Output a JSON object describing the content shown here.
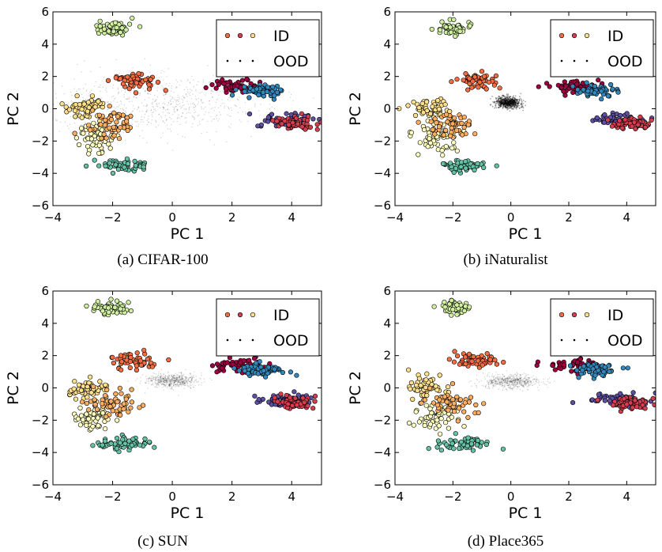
{
  "figure": {
    "captions": [
      "(a) CIFAR-100",
      "(b) iNaturalist",
      "(c) SUN",
      "(d) Place365"
    ]
  },
  "cluster_colors": [
    "#fee08b",
    "#ffffbf",
    "#fdae61",
    "#66c2a5",
    "#f46d43",
    "#d0f0a0",
    "#9e0142",
    "#3288bd",
    "#5e4fa2",
    "#d53e4f"
  ],
  "chart_data": [
    {
      "type": "scatter",
      "title": "",
      "caption": "(a) CIFAR-100",
      "xlabel": "PC 1",
      "ylabel": "PC 2",
      "xlim": [
        -4,
        5
      ],
      "ylim": [
        -6,
        6
      ],
      "xticks": [
        -4,
        -2,
        0,
        2,
        4
      ],
      "yticks": [
        -6,
        -4,
        -2,
        0,
        2,
        4,
        6
      ],
      "legend": {
        "entries": [
          "ID",
          "OOD"
        ],
        "placement": "top-right"
      },
      "ood": {
        "center": [
          -0.3,
          0.4
        ],
        "spread": [
          1.1,
          0.55
        ],
        "density": "diffuse"
      },
      "series": [
        {
          "name": "ID",
          "clusters": [
            {
              "center": [
                -2.9,
                0.0
              ],
              "spread": [
                0.35,
                0.35
              ],
              "color": "#fee08b"
            },
            {
              "center": [
                -2.6,
                -1.8
              ],
              "spread": [
                0.35,
                0.4
              ],
              "color": "#ffffbf"
            },
            {
              "center": [
                -2.0,
                -1.0
              ],
              "spread": [
                0.4,
                0.4
              ],
              "color": "#fdae61"
            },
            {
              "center": [
                -1.6,
                -3.5
              ],
              "spread": [
                0.45,
                0.2
              ],
              "color": "#66c2a5"
            },
            {
              "center": [
                -1.2,
                1.7
              ],
              "spread": [
                0.4,
                0.25
              ],
              "color": "#f46d43"
            },
            {
              "center": [
                -2.0,
                5.0
              ],
              "spread": [
                0.3,
                0.2
              ],
              "color": "#d0f0a0"
            },
            {
              "center": [
                2.2,
                1.4
              ],
              "spread": [
                0.45,
                0.2
              ],
              "color": "#9e0142"
            },
            {
              "center": [
                3.0,
                1.1
              ],
              "spread": [
                0.4,
                0.2
              ],
              "color": "#3288bd"
            },
            {
              "center": [
                3.8,
                -0.7
              ],
              "spread": [
                0.45,
                0.2
              ],
              "color": "#5e4fa2"
            },
            {
              "center": [
                4.1,
                -0.9
              ],
              "spread": [
                0.35,
                0.2
              ],
              "color": "#d53e4f"
            }
          ]
        },
        {
          "name": "OOD"
        }
      ]
    },
    {
      "type": "scatter",
      "title": "",
      "caption": "(b) iNaturalist",
      "xlabel": "PC 1",
      "ylabel": "PC 2",
      "xlim": [
        -4,
        5
      ],
      "ylim": [
        -6,
        6
      ],
      "xticks": [
        -4,
        -2,
        0,
        2,
        4
      ],
      "yticks": [
        -6,
        -4,
        -2,
        0,
        2,
        4,
        6
      ],
      "legend": {
        "entries": [
          "ID",
          "OOD"
        ],
        "placement": "top-right"
      },
      "ood": {
        "center": [
          -0.1,
          0.4
        ],
        "spread": [
          0.22,
          0.18
        ],
        "density": "dense"
      },
      "series": [
        {
          "name": "ID",
          "clusters": [
            {
              "center": [
                -2.9,
                0.0
              ],
              "spread": [
                0.35,
                0.35
              ],
              "color": "#fee08b"
            },
            {
              "center": [
                -2.6,
                -1.8
              ],
              "spread": [
                0.35,
                0.4
              ],
              "color": "#ffffbf"
            },
            {
              "center": [
                -2.0,
                -1.0
              ],
              "spread": [
                0.4,
                0.4
              ],
              "color": "#fdae61"
            },
            {
              "center": [
                -1.6,
                -3.5
              ],
              "spread": [
                0.45,
                0.2
              ],
              "color": "#66c2a5"
            },
            {
              "center": [
                -1.2,
                1.7
              ],
              "spread": [
                0.4,
                0.25
              ],
              "color": "#f46d43"
            },
            {
              "center": [
                -2.0,
                5.0
              ],
              "spread": [
                0.3,
                0.2
              ],
              "color": "#d0f0a0"
            },
            {
              "center": [
                2.2,
                1.4
              ],
              "spread": [
                0.45,
                0.2
              ],
              "color": "#9e0142"
            },
            {
              "center": [
                3.0,
                1.1
              ],
              "spread": [
                0.4,
                0.2
              ],
              "color": "#3288bd"
            },
            {
              "center": [
                3.8,
                -0.7
              ],
              "spread": [
                0.45,
                0.2
              ],
              "color": "#5e4fa2"
            },
            {
              "center": [
                4.1,
                -0.9
              ],
              "spread": [
                0.35,
                0.2
              ],
              "color": "#d53e4f"
            }
          ]
        },
        {
          "name": "OOD"
        }
      ]
    },
    {
      "type": "scatter",
      "title": "",
      "caption": "(c) SUN",
      "xlabel": "PC 1",
      "ylabel": "PC 2",
      "xlim": [
        -4,
        5
      ],
      "ylim": [
        -6,
        6
      ],
      "xticks": [
        -4,
        -2,
        0,
        2,
        4
      ],
      "yticks": [
        -6,
        -4,
        -2,
        0,
        2,
        4,
        6
      ],
      "legend": {
        "entries": [
          "ID",
          "OOD"
        ],
        "placement": "top-right"
      },
      "ood": {
        "center": [
          0.0,
          0.45
        ],
        "spread": [
          0.45,
          0.22
        ],
        "density": "medium"
      },
      "series": [
        {
          "name": "ID",
          "clusters": [
            {
              "center": [
                -2.9,
                0.0
              ],
              "spread": [
                0.35,
                0.35
              ],
              "color": "#fee08b"
            },
            {
              "center": [
                -2.6,
                -1.8
              ],
              "spread": [
                0.35,
                0.4
              ],
              "color": "#ffffbf"
            },
            {
              "center": [
                -2.0,
                -1.0
              ],
              "spread": [
                0.4,
                0.4
              ],
              "color": "#fdae61"
            },
            {
              "center": [
                -1.6,
                -3.5
              ],
              "spread": [
                0.45,
                0.2
              ],
              "color": "#66c2a5"
            },
            {
              "center": [
                -1.2,
                1.7
              ],
              "spread": [
                0.4,
                0.25
              ],
              "color": "#f46d43"
            },
            {
              "center": [
                -2.0,
                5.0
              ],
              "spread": [
                0.3,
                0.2
              ],
              "color": "#d0f0a0"
            },
            {
              "center": [
                2.2,
                1.4
              ],
              "spread": [
                0.45,
                0.2
              ],
              "color": "#9e0142"
            },
            {
              "center": [
                3.0,
                1.1
              ],
              "spread": [
                0.4,
                0.2
              ],
              "color": "#3288bd"
            },
            {
              "center": [
                3.8,
                -0.7
              ],
              "spread": [
                0.45,
                0.2
              ],
              "color": "#5e4fa2"
            },
            {
              "center": [
                4.1,
                -0.9
              ],
              "spread": [
                0.35,
                0.2
              ],
              "color": "#d53e4f"
            }
          ]
        },
        {
          "name": "OOD"
        }
      ]
    },
    {
      "type": "scatter",
      "title": "",
      "caption": "(d) Place365",
      "xlabel": "PC 1",
      "ylabel": "PC 2",
      "xlim": [
        -4,
        5
      ],
      "ylim": [
        -6,
        6
      ],
      "xticks": [
        -4,
        -2,
        0,
        2,
        4
      ],
      "yticks": [
        -6,
        -4,
        -2,
        0,
        2,
        4,
        6
      ],
      "legend": {
        "entries": [
          "ID",
          "OOD"
        ],
        "placement": "top-right"
      },
      "ood": {
        "center": [
          0.0,
          0.4
        ],
        "spread": [
          0.5,
          0.22
        ],
        "density": "medium"
      },
      "series": [
        {
          "name": "ID",
          "clusters": [
            {
              "center": [
                -2.9,
                0.0
              ],
              "spread": [
                0.35,
                0.35
              ],
              "color": "#fee08b"
            },
            {
              "center": [
                -2.6,
                -1.8
              ],
              "spread": [
                0.35,
                0.4
              ],
              "color": "#ffffbf"
            },
            {
              "center": [
                -2.0,
                -1.0
              ],
              "spread": [
                0.4,
                0.4
              ],
              "color": "#fdae61"
            },
            {
              "center": [
                -1.6,
                -3.5
              ],
              "spread": [
                0.45,
                0.2
              ],
              "color": "#66c2a5"
            },
            {
              "center": [
                -1.2,
                1.7
              ],
              "spread": [
                0.4,
                0.25
              ],
              "color": "#f46d43"
            },
            {
              "center": [
                -2.0,
                5.0
              ],
              "spread": [
                0.3,
                0.2
              ],
              "color": "#d0f0a0"
            },
            {
              "center": [
                2.2,
                1.4
              ],
              "spread": [
                0.45,
                0.2
              ],
              "color": "#9e0142"
            },
            {
              "center": [
                3.0,
                1.1
              ],
              "spread": [
                0.4,
                0.2
              ],
              "color": "#3288bd"
            },
            {
              "center": [
                3.8,
                -0.7
              ],
              "spread": [
                0.45,
                0.2
              ],
              "color": "#5e4fa2"
            },
            {
              "center": [
                4.1,
                -0.9
              ],
              "spread": [
                0.35,
                0.2
              ],
              "color": "#d53e4f"
            }
          ]
        },
        {
          "name": "OOD"
        }
      ]
    }
  ]
}
